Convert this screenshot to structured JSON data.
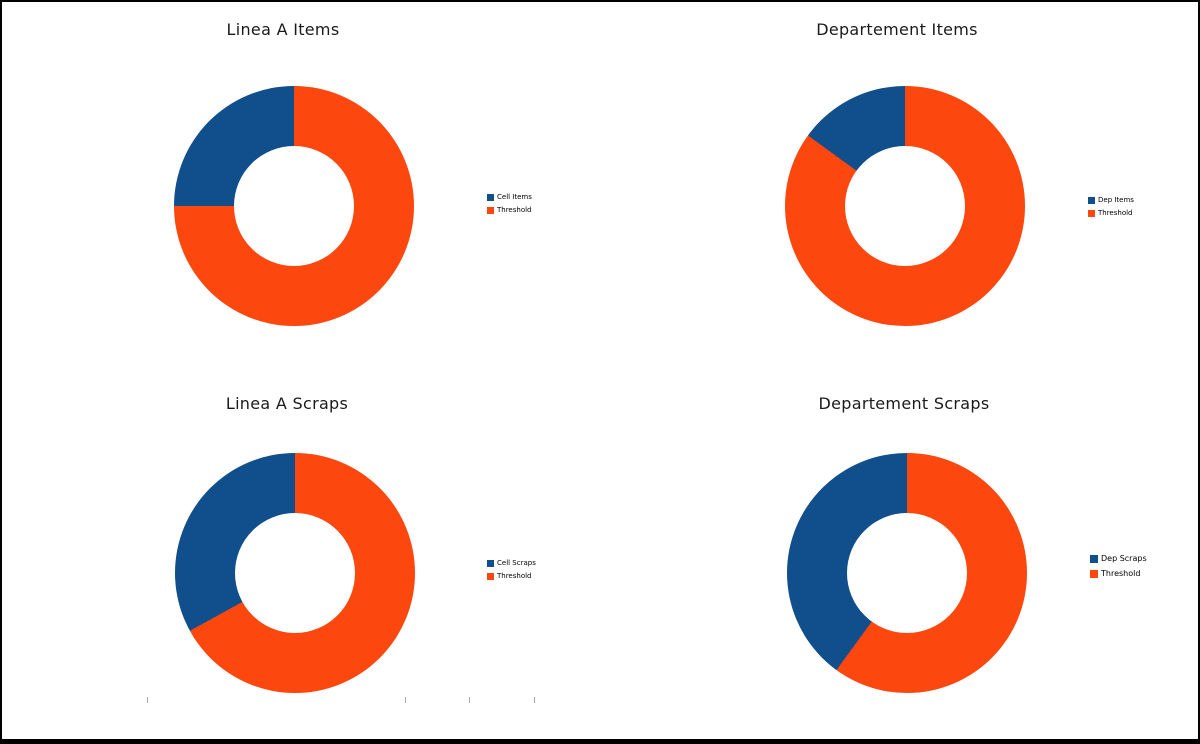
{
  "page": {
    "background": "#ffffff",
    "frame_color": "#000000"
  },
  "palette": {
    "series_blue": "#104E8C",
    "series_orange": "#FC470E",
    "tick_gray": "#a9a9a9"
  },
  "chart_data": [
    {
      "type": "pie",
      "donut": true,
      "title": "Linea A Items",
      "labels": [
        "Cell Items",
        "Threshold"
      ],
      "values_pct": [
        25,
        75
      ],
      "colors": [
        "#104E8C",
        "#FC470E"
      ],
      "start_angle": "12-o-clock",
      "first_slice_direction": "counterclockwise",
      "inner_radius_ratio": 0.5,
      "legend_position": "right-center"
    },
    {
      "type": "pie",
      "donut": true,
      "title": "Departement Items",
      "labels": [
        "Dep Items",
        "Threshold"
      ],
      "values_pct": [
        15,
        85
      ],
      "colors": [
        "#104E8C",
        "#FC470E"
      ],
      "start_angle": "12-o-clock",
      "first_slice_direction": "counterclockwise",
      "inner_radius_ratio": 0.5,
      "legend_position": "right-center"
    },
    {
      "type": "pie",
      "donut": true,
      "title": "Linea A Scraps",
      "labels": [
        "Cell Scraps",
        "Threshold"
      ],
      "values_pct": [
        33,
        67
      ],
      "colors": [
        "#104E8C",
        "#FC470E"
      ],
      "start_angle": "12-o-clock",
      "first_slice_direction": "counterclockwise",
      "inner_radius_ratio": 0.5,
      "legend_position": "right-center"
    },
    {
      "type": "pie",
      "donut": true,
      "title": "Departement Scraps",
      "labels": [
        "Dep Scraps",
        "Threshold"
      ],
      "values_pct": [
        40,
        60
      ],
      "colors": [
        "#104E8C",
        "#FC470E"
      ],
      "start_angle": "12-o-clock",
      "first_slice_direction": "counterclockwise",
      "inner_radius_ratio": 0.5,
      "legend_position": "right-center"
    }
  ]
}
